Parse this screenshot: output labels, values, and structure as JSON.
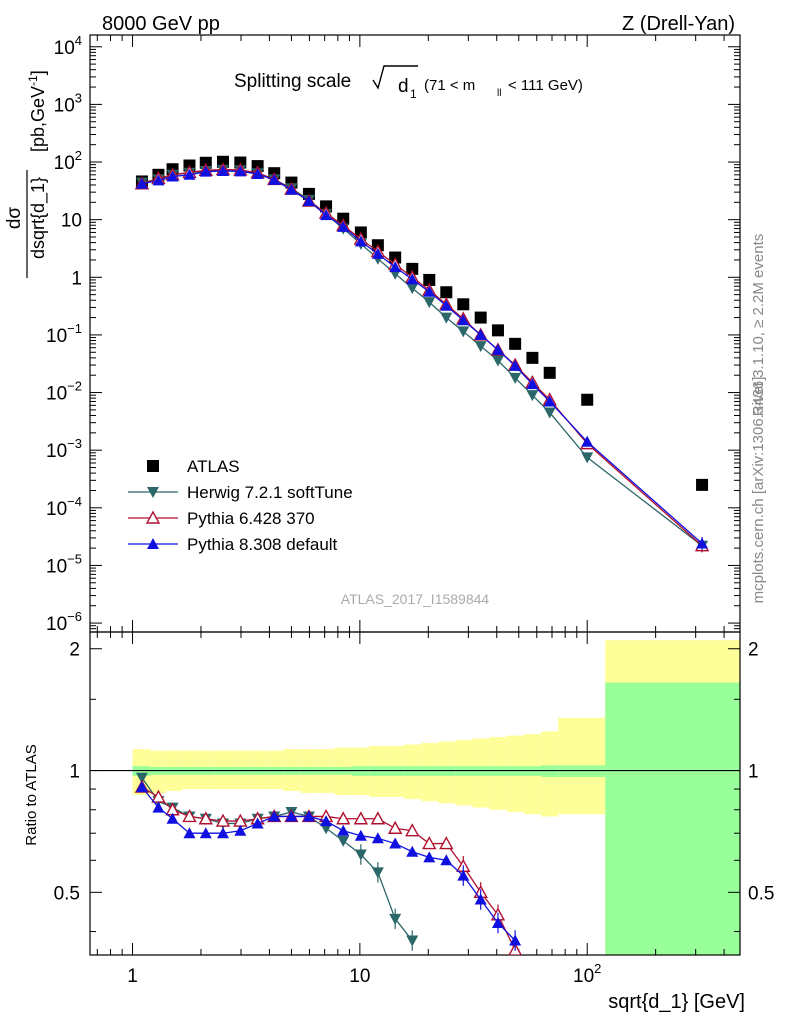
{
  "header": {
    "left": "8000 GeV pp",
    "right": "Z (Drell-Yan)"
  },
  "side": {
    "rivet": "Rivet 3.1.10, ≥ 2.2M events",
    "mcplots": "mcplots.cern.ch [arXiv:1306.3436]"
  },
  "chart_data": [
    {
      "type": "scatter",
      "title": "Splitting scale",
      "title_symbol": "d",
      "title_symbol_sub": "1",
      "title_range": "(71 < m",
      "title_range_sub": "ll",
      "title_range_end": " < 111 GeV)",
      "ylabel_num": "dσ",
      "ylabel_den": "dsqrt{d_1}",
      "ylabel_units": "[pb,GeV",
      "ylabel_units_sup": "-1",
      "ylabel_units_end": "]",
      "watermark": "ATLAS_2017_I1589844",
      "xscale": "log",
      "yscale": "log",
      "xlim": [
        0.65,
        470
      ],
      "ylim": [
        7e-07,
        16000
      ],
      "y_ticks": [
        {
          "v": 10000.0,
          "m": "10",
          "e": "4"
        },
        {
          "v": 1000.0,
          "m": "10",
          "e": "3"
        },
        {
          "v": 100.0,
          "m": "10",
          "e": "2"
        },
        {
          "v": 10,
          "m": "10",
          "e": ""
        },
        {
          "v": 1,
          "m": "1",
          "e": ""
        },
        {
          "v": 0.1,
          "m": "10",
          "e": "−1"
        },
        {
          "v": 0.01,
          "m": "10",
          "e": "−2"
        },
        {
          "v": 0.001,
          "m": "10",
          "e": "−3"
        },
        {
          "v": 0.0001,
          "m": "10",
          "e": "−4"
        },
        {
          "v": 1e-05,
          "m": "10",
          "e": "−5"
        },
        {
          "v": 1e-06,
          "m": "10",
          "e": "−6"
        }
      ],
      "legend_position": "bottom-left",
      "series": [
        {
          "name": "ATLAS",
          "color": "#000000",
          "marker": "square",
          "x": [
            1.1,
            1.3,
            1.5,
            1.78,
            2.1,
            2.5,
            2.98,
            3.55,
            4.2,
            5.0,
            5.97,
            7.1,
            8.45,
            10.1,
            12.0,
            14.3,
            17.0,
            20.2,
            24.0,
            28.5,
            34.0,
            40.5,
            48.2,
            57.4,
            68.4,
            100,
            320
          ],
          "y": [
            46,
            60,
            75,
            87,
            97,
            101,
            98,
            85,
            64,
            44,
            28,
            17,
            10.4,
            6.0,
            3.6,
            2.2,
            1.4,
            0.9,
            0.55,
            0.34,
            0.2,
            0.12,
            0.07,
            0.04,
            0.022,
            0.0075,
            0.00025
          ]
        },
        {
          "name": "Herwig 7.2.1 softTune",
          "color": "#2b6668",
          "marker": "triangle-down",
          "x": [
            1.1,
            1.3,
            1.5,
            1.78,
            2.1,
            2.5,
            2.98,
            3.55,
            4.2,
            5.0,
            5.97,
            7.1,
            8.45,
            10.1,
            12.0,
            14.3,
            17.0,
            20.2,
            24.0,
            28.5,
            34.0,
            40.5,
            48.2,
            57.4,
            68.4,
            100,
            320
          ],
          "y": [
            44,
            50,
            60,
            65,
            70,
            73,
            72,
            64,
            50,
            35,
            22,
            12.5,
            7.0,
            3.8,
            2.1,
            1.15,
            0.65,
            0.37,
            0.2,
            0.115,
            0.064,
            0.036,
            0.018,
            0.009,
            0.0045,
            0.00075,
            2.2e-05
          ]
        },
        {
          "name": "Pythia 6.428 370",
          "color": "#b01030",
          "marker": "triangle-up-open",
          "x": [
            1.1,
            1.3,
            1.5,
            1.78,
            2.1,
            2.5,
            2.98,
            3.55,
            4.2,
            5.0,
            5.97,
            7.1,
            8.45,
            10.1,
            12.0,
            14.3,
            17.0,
            20.2,
            24.0,
            28.5,
            34.0,
            40.5,
            48.2,
            57.4,
            68.4,
            100,
            320
          ],
          "y": [
            42,
            52,
            60,
            66,
            72,
            74,
            73,
            65,
            50,
            34,
            21,
            13,
            7.9,
            4.6,
            2.8,
            1.67,
            1.0,
            0.6,
            0.34,
            0.19,
            0.1,
            0.055,
            0.03,
            0.015,
            0.0075,
            0.0013,
            2.2e-05
          ]
        },
        {
          "name": "Pythia 8.308 default",
          "color": "#1010e0",
          "marker": "triangle-up",
          "x": [
            1.1,
            1.3,
            1.5,
            1.78,
            2.1,
            2.5,
            2.98,
            3.55,
            4.2,
            5.0,
            5.97,
            7.1,
            8.45,
            10.1,
            12.0,
            14.3,
            17.0,
            20.2,
            24.0,
            28.5,
            34.0,
            40.5,
            48.2,
            57.4,
            68.4,
            100,
            320
          ],
          "y": [
            42,
            48,
            56,
            60,
            68,
            70,
            69,
            62,
            49,
            33,
            21,
            12,
            7.5,
            4.2,
            2.55,
            1.5,
            0.92,
            0.56,
            0.32,
            0.18,
            0.1,
            0.055,
            0.029,
            0.014,
            0.007,
            0.0014,
            2.4e-05
          ]
        }
      ]
    },
    {
      "type": "line",
      "ylabel": "Ratio to ATLAS",
      "xlabel": "sqrt{d_1} [GeV]",
      "xscale": "log",
      "xlim": [
        0.65,
        470
      ],
      "ylim": [
        0.35,
        2.2
      ],
      "x_ticks": [
        {
          "v": 1,
          "m": "1",
          "e": ""
        },
        {
          "v": 10,
          "m": "10",
          "e": ""
        },
        {
          "v": 100,
          "m": "10",
          "e": "2"
        }
      ],
      "y_ticks": [
        {
          "v": 0.5,
          "label": "0.5"
        },
        {
          "v": 1,
          "label": "1"
        },
        {
          "v": 2,
          "label": "2"
        }
      ],
      "bands": {
        "edges": [
          1.0,
          1.2,
          1.4,
          1.65,
          1.95,
          2.3,
          2.75,
          3.25,
          3.85,
          4.6,
          5.5,
          6.5,
          7.75,
          9.2,
          11.0,
          13.1,
          15.6,
          18.6,
          22.1,
          26.3,
          31.3,
          37.2,
          44.3,
          52.7,
          62.7,
          74.6,
          120,
          470
        ],
        "stat_sys": [
          0.13,
          0.12,
          0.12,
          0.12,
          0.12,
          0.12,
          0.12,
          0.12,
          0.12,
          0.13,
          0.13,
          0.13,
          0.14,
          0.14,
          0.15,
          0.15,
          0.16,
          0.17,
          0.18,
          0.19,
          0.2,
          0.21,
          0.22,
          0.23,
          0.25,
          0.35,
          1.1
        ],
        "inner": [
          0.05,
          0.04,
          0.04,
          0.04,
          0.04,
          0.04,
          0.04,
          0.04,
          0.04,
          0.04,
          0.04,
          0.04,
          0.04,
          0.05,
          0.05,
          0.05,
          0.05,
          0.05,
          0.05,
          0.05,
          0.05,
          0.05,
          0.05,
          0.05,
          0.06,
          0.06,
          0.65
        ],
        "lower_yellow_upto": [
          0.87,
          0.88,
          0.89,
          0.9,
          0.9,
          0.9,
          0.9,
          0.9,
          0.9,
          0.89,
          0.88,
          0.88,
          0.87,
          0.87,
          0.86,
          0.86,
          0.85,
          0.84,
          0.83,
          0.82,
          0.81,
          0.8,
          0.79,
          0.78,
          0.77,
          0.78,
          0.35
        ],
        "yellow_color": "#ffff99",
        "green_color": "#99ff99"
      },
      "series": [
        {
          "name": "Herwig 7.2.1 softTune",
          "color": "#2b6668",
          "marker": "triangle-down",
          "x": [
            1.1,
            1.3,
            1.5,
            1.78,
            2.1,
            2.5,
            2.98,
            3.55,
            4.2,
            5.0,
            5.97,
            7.1,
            8.45,
            10.1,
            12.0,
            14.3,
            17.0
          ],
          "y": [
            0.96,
            0.84,
            0.81,
            0.77,
            0.76,
            0.74,
            0.74,
            0.76,
            0.77,
            0.79,
            0.77,
            0.72,
            0.67,
            0.62,
            0.56,
            0.43,
            0.38
          ]
        },
        {
          "name": "Pythia 6.428 370",
          "color": "#b01030",
          "marker": "triangle-up-open",
          "x": [
            1.1,
            1.3,
            1.5,
            1.78,
            2.1,
            2.5,
            2.98,
            3.55,
            4.2,
            5.0,
            5.97,
            7.1,
            8.45,
            10.1,
            12.0,
            14.3,
            17.0,
            20.2,
            24.0,
            28.5,
            34.0,
            40.5,
            48.2
          ],
          "y": [
            0.91,
            0.86,
            0.8,
            0.77,
            0.76,
            0.75,
            0.75,
            0.76,
            0.77,
            0.77,
            0.77,
            0.77,
            0.76,
            0.76,
            0.76,
            0.72,
            0.71,
            0.66,
            0.66,
            0.58,
            0.5,
            0.44,
            0.36
          ]
        },
        {
          "name": "Pythia 8.308 default",
          "color": "#1010e0",
          "marker": "triangle-up",
          "x": [
            1.1,
            1.3,
            1.5,
            1.78,
            2.1,
            2.5,
            2.98,
            3.55,
            4.2,
            5.0,
            5.97,
            7.1,
            8.45,
            10.1,
            12.0,
            14.3,
            17.0,
            20.2,
            24.0,
            28.5,
            34.0,
            40.5,
            48.2
          ],
          "y": [
            0.91,
            0.81,
            0.76,
            0.7,
            0.7,
            0.7,
            0.71,
            0.74,
            0.77,
            0.77,
            0.77,
            0.75,
            0.71,
            0.69,
            0.68,
            0.66,
            0.63,
            0.61,
            0.6,
            0.55,
            0.48,
            0.42,
            0.38
          ]
        }
      ]
    }
  ]
}
